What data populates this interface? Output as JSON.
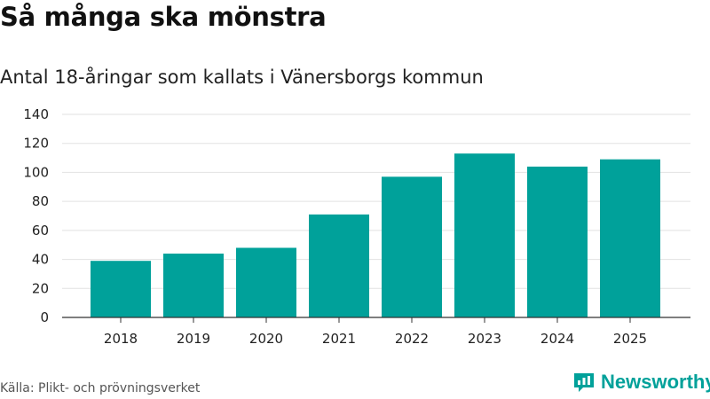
{
  "header": {
    "title": "Så många ska mönstra",
    "subtitle": "Antal 18-åringar som kallats i Vänersborgs kommun"
  },
  "footer": {
    "source": "Källa: Plikt- och prövningsverket",
    "brand": "Newsworthy",
    "brand_icon": "newsworthy-logo-icon"
  },
  "colors": {
    "bar": "#00a19a",
    "grid": "#e2e2e2",
    "axis": "#333333"
  },
  "chart_data": {
    "type": "bar",
    "title": "Så många ska mönstra",
    "subtitle": "Antal 18-åringar som kallats i Vänersborgs kommun",
    "xlabel": "",
    "ylabel": "",
    "categories": [
      "2018",
      "2019",
      "2020",
      "2021",
      "2022",
      "2023",
      "2024",
      "2025"
    ],
    "values": [
      39,
      44,
      48,
      71,
      97,
      113,
      104,
      109
    ],
    "ylim": [
      0,
      140
    ],
    "yticks": [
      0,
      20,
      40,
      60,
      80,
      100,
      120,
      140
    ],
    "grid": true
  }
}
